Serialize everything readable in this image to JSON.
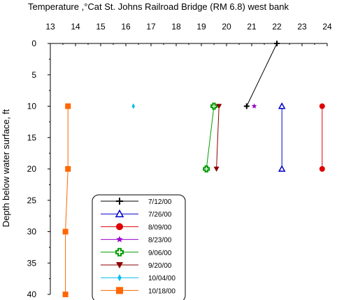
{
  "chart_data": {
    "type": "line",
    "title": "Temperature ,°Cat St. Johns Railroad Bridge (RM 6.8) west bank",
    "xlabel": "",
    "ylabel": "Depth below water surface, ft",
    "xlim": [
      13,
      24
    ],
    "ylim": [
      0,
      40
    ],
    "y_inverted": true,
    "x_ticks": [
      13,
      14,
      15,
      16,
      17,
      18,
      19,
      20,
      21,
      22,
      23,
      24
    ],
    "y_ticks": [
      0,
      5,
      10,
      15,
      20,
      25,
      30,
      35,
      40
    ],
    "x_axis_position": "top",
    "grid": false,
    "legend_position": "lower-left",
    "series": [
      {
        "name": "7/12/00",
        "color": "#000000",
        "marker": "plus",
        "points": [
          [
            22.0,
            0
          ],
          [
            20.8,
            10
          ]
        ]
      },
      {
        "name": "7/26/00",
        "color": "#0000cc",
        "marker": "triangle-open",
        "points": [
          [
            22.2,
            10
          ],
          [
            22.2,
            20
          ]
        ]
      },
      {
        "name": "8/09/00",
        "color": "#dd0000",
        "marker": "circle",
        "points": [
          [
            23.8,
            10
          ],
          [
            23.8,
            20
          ]
        ]
      },
      {
        "name": "8/23/00",
        "color": "#9900cc",
        "marker": "star",
        "points": [
          [
            21.1,
            10
          ]
        ]
      },
      {
        "name": "9/06/00",
        "color": "#009900",
        "marker": "cross-open",
        "points": [
          [
            19.5,
            10
          ],
          [
            19.2,
            20
          ]
        ]
      },
      {
        "name": "9/20/00",
        "color": "#8b0000",
        "marker": "triangle-down",
        "points": [
          [
            19.7,
            10
          ],
          [
            19.6,
            20
          ]
        ]
      },
      {
        "name": "10/04/00",
        "color": "#00bbee",
        "marker": "diamond",
        "points": [
          [
            16.3,
            10
          ]
        ]
      },
      {
        "name": "10/18/00",
        "color": "#ff6600",
        "marker": "square",
        "points": [
          [
            13.7,
            10
          ],
          [
            13.7,
            20
          ],
          [
            13.6,
            30
          ],
          [
            13.6,
            40
          ]
        ]
      }
    ]
  }
}
